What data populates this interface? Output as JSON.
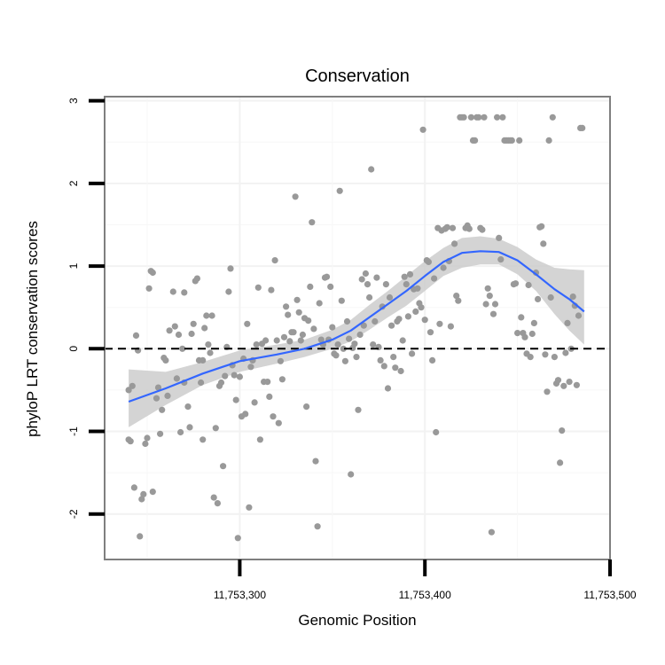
{
  "chart_data": {
    "type": "scatter",
    "title": "Conservation",
    "xlabel": "Genomic Position",
    "ylabel": "phyloP LRT conservation scores",
    "xlim": [
      11753227,
      11753500
    ],
    "ylim": [
      -2.55,
      3.05
    ],
    "x_ticks": [
      11753300,
      11753400,
      11753500
    ],
    "x_tick_labels": [
      "11,753,300",
      "11,753,400",
      "11,753,500"
    ],
    "y_ticks": [
      -2,
      -1,
      0,
      1,
      2,
      3
    ],
    "y_tick_labels": [
      "-2",
      "-1",
      "0",
      "1",
      "2",
      "3"
    ],
    "grid": true,
    "reference_line": {
      "y": 0,
      "style": "dashed"
    },
    "point_color": "#999999",
    "smooth_color": "#3366ff",
    "ribbon_color": "#cccccc",
    "points": [
      [
        11753240,
        -1.1
      ],
      [
        11753241,
        -1.12
      ],
      [
        11753240,
        -0.5
      ],
      [
        11753242,
        -0.45
      ],
      [
        11753243,
        -1.68
      ],
      [
        11753244,
        0.16
      ],
      [
        11753245,
        -0.02
      ],
      [
        11753246,
        -2.27
      ],
      [
        11753247,
        -1.82
      ],
      [
        11753248,
        -1.76
      ],
      [
        11753249,
        -1.15
      ],
      [
        11753250,
        -1.08
      ],
      [
        11753251,
        0.73
      ],
      [
        11753252,
        0.94
      ],
      [
        11753253,
        0.92
      ],
      [
        11753253,
        -1.73
      ],
      [
        11753255,
        -0.6
      ],
      [
        11753256,
        -0.47
      ],
      [
        11753257,
        -1.03
      ],
      [
        11753258,
        -0.74
      ],
      [
        11753259,
        -0.11
      ],
      [
        11753260,
        -0.14
      ],
      [
        11753261,
        -0.57
      ],
      [
        11753262,
        0.22
      ],
      [
        11753264,
        0.69
      ],
      [
        11753265,
        0.27
      ],
      [
        11753266,
        -0.36
      ],
      [
        11753267,
        0.17
      ],
      [
        11753268,
        -1.01
      ],
      [
        11753269,
        0.0
      ],
      [
        11753270,
        0.68
      ],
      [
        11753270,
        -0.41
      ],
      [
        11753272,
        -0.7
      ],
      [
        11753273,
        -0.95
      ],
      [
        11753274,
        0.18
      ],
      [
        11753275,
        0.3
      ],
      [
        11753276,
        0.82
      ],
      [
        11753277,
        0.85
      ],
      [
        11753278,
        -0.14
      ],
      [
        11753279,
        -0.41
      ],
      [
        11753280,
        -0.14
      ],
      [
        11753280,
        -1.1
      ],
      [
        11753281,
        0.25
      ],
      [
        11753282,
        0.4
      ],
      [
        11753283,
        0.05
      ],
      [
        11753284,
        -0.05
      ],
      [
        11753285,
        0.4
      ],
      [
        11753286,
        -1.8
      ],
      [
        11753287,
        -0.96
      ],
      [
        11753288,
        -1.87
      ],
      [
        11753289,
        -0.45
      ],
      [
        11753290,
        -0.41
      ],
      [
        11753291,
        -1.42
      ],
      [
        11753292,
        -0.33
      ],
      [
        11753293,
        0.02
      ],
      [
        11753294,
        0.69
      ],
      [
        11753295,
        0.97
      ],
      [
        11753296,
        -0.2
      ],
      [
        11753297,
        -0.32
      ],
      [
        11753298,
        -0.62
      ],
      [
        11753299,
        -2.29
      ],
      [
        11753300,
        -0.34
      ],
      [
        11753301,
        -0.82
      ],
      [
        11753302,
        -0.12
      ],
      [
        11753303,
        -0.79
      ],
      [
        11753304,
        0.3
      ],
      [
        11753305,
        -1.92
      ],
      [
        11753306,
        -0.22
      ],
      [
        11753307,
        -0.14
      ],
      [
        11753308,
        -0.65
      ],
      [
        11753309,
        0.05
      ],
      [
        11753310,
        0.74
      ],
      [
        11753311,
        -1.1
      ],
      [
        11753312,
        0.06
      ],
      [
        11753313,
        -0.4
      ],
      [
        11753314,
        0.1
      ],
      [
        11753315,
        -0.4
      ],
      [
        11753316,
        -0.58
      ],
      [
        11753317,
        0.71
      ],
      [
        11753318,
        -0.82
      ],
      [
        11753319,
        1.07
      ],
      [
        11753320,
        0.1
      ],
      [
        11753321,
        -0.9
      ],
      [
        11753322,
        -0.15
      ],
      [
        11753323,
        -0.37
      ],
      [
        11753324,
        0.14
      ],
      [
        11753325,
        0.51
      ],
      [
        11753326,
        0.41
      ],
      [
        11753327,
        0.09
      ],
      [
        11753328,
        0.2
      ],
      [
        11753329,
        0.2
      ],
      [
        11753330,
        1.84
      ],
      [
        11753331,
        0.59
      ],
      [
        11753332,
        0.44
      ],
      [
        11753333,
        0.1
      ],
      [
        11753334,
        0.17
      ],
      [
        11753335,
        0.37
      ],
      [
        11753336,
        -0.7
      ],
      [
        11753337,
        0.34
      ],
      [
        11753338,
        0.75
      ],
      [
        11753339,
        1.53
      ],
      [
        11753340,
        0.24
      ],
      [
        11753341,
        -1.36
      ],
      [
        11753342,
        -2.15
      ],
      [
        11753343,
        0.55
      ],
      [
        11753344,
        0.11
      ],
      [
        11753345,
        0.05
      ],
      [
        11753346,
        0.86
      ],
      [
        11753347,
        0.87
      ],
      [
        11753348,
        0.11
      ],
      [
        11753349,
        0.75
      ],
      [
        11753350,
        0.26
      ],
      [
        11753351,
        -0.06
      ],
      [
        11753352,
        -0.08
      ],
      [
        11753353,
        0.05
      ],
      [
        11753354,
        1.91
      ],
      [
        11753355,
        0.58
      ],
      [
        11753356,
        0.0
      ],
      [
        11753357,
        -0.15
      ],
      [
        11753358,
        0.33
      ],
      [
        11753359,
        0.12
      ],
      [
        11753360,
        -1.52
      ],
      [
        11753361,
        0.01
      ],
      [
        11753362,
        0.06
      ],
      [
        11753363,
        -0.1
      ],
      [
        11753364,
        -0.74
      ],
      [
        11753365,
        0.17
      ],
      [
        11753366,
        0.84
      ],
      [
        11753367,
        0.28
      ],
      [
        11753368,
        0.91
      ],
      [
        11753369,
        0.78
      ],
      [
        11753370,
        0.62
      ],
      [
        11753371,
        2.17
      ],
      [
        11753372,
        0.05
      ],
      [
        11753373,
        0.33
      ],
      [
        11753374,
        0.86
      ],
      [
        11753375,
        0.02
      ],
      [
        11753376,
        -0.14
      ],
      [
        11753377,
        0.51
      ],
      [
        11753378,
        -0.21
      ],
      [
        11753379,
        0.78
      ],
      [
        11753380,
        -0.48
      ],
      [
        11753381,
        0.62
      ],
      [
        11753382,
        0.28
      ],
      [
        11753383,
        -0.1
      ],
      [
        11753384,
        -0.23
      ],
      [
        11753385,
        0.33
      ],
      [
        11753386,
        0.36
      ],
      [
        11753387,
        -0.27
      ],
      [
        11753388,
        0.1
      ],
      [
        11753389,
        0.87
      ],
      [
        11753390,
        0.78
      ],
      [
        11753391,
        0.39
      ],
      [
        11753392,
        0.9
      ],
      [
        11753393,
        -0.06
      ],
      [
        11753394,
        0.72
      ],
      [
        11753395,
        0.45
      ],
      [
        11753396,
        0.73
      ],
      [
        11753397,
        0.55
      ],
      [
        11753398,
        0.5
      ],
      [
        11753399,
        2.65
      ],
      [
        11753400,
        0.35
      ],
      [
        11753401,
        1.07
      ],
      [
        11753402,
        1.05
      ],
      [
        11753403,
        0.2
      ],
      [
        11753404,
        -0.14
      ],
      [
        11753405,
        0.85
      ],
      [
        11753406,
        -1.01
      ],
      [
        11753407,
        1.46
      ],
      [
        11753408,
        0.3
      ],
      [
        11753409,
        1.43
      ],
      [
        11753410,
        0.98
      ],
      [
        11753411,
        1.45
      ],
      [
        11753412,
        1.47
      ],
      [
        11753413,
        1.06
      ],
      [
        11753414,
        0.27
      ],
      [
        11753415,
        1.46
      ],
      [
        11753416,
        1.27
      ],
      [
        11753417,
        0.64
      ],
      [
        11753418,
        0.58
      ],
      [
        11753419,
        2.8
      ],
      [
        11753420,
        2.8
      ],
      [
        11753421,
        2.8
      ],
      [
        11753422,
        1.46
      ],
      [
        11753423,
        1.49
      ],
      [
        11753424,
        1.45
      ],
      [
        11753425,
        2.8
      ],
      [
        11753426,
        2.52
      ],
      [
        11753427,
        2.52
      ],
      [
        11753428,
        2.8
      ],
      [
        11753429,
        2.8
      ],
      [
        11753430,
        1.46
      ],
      [
        11753431,
        1.44
      ],
      [
        11753432,
        2.8
      ],
      [
        11753433,
        0.54
      ],
      [
        11753434,
        0.73
      ],
      [
        11753435,
        0.64
      ],
      [
        11753436,
        -2.22
      ],
      [
        11753437,
        0.42
      ],
      [
        11753438,
        0.54
      ],
      [
        11753439,
        2.8
      ],
      [
        11753440,
        1.34
      ],
      [
        11753441,
        1.08
      ],
      [
        11753442,
        2.8
      ],
      [
        11753443,
        2.52
      ],
      [
        11753444,
        2.52
      ],
      [
        11753445,
        2.52
      ],
      [
        11753446,
        2.52
      ],
      [
        11753447,
        2.52
      ],
      [
        11753448,
        0.78
      ],
      [
        11753449,
        0.79
      ],
      [
        11753450,
        0.19
      ],
      [
        11753451,
        2.52
      ],
      [
        11753452,
        0.38
      ],
      [
        11753453,
        0.19
      ],
      [
        11753454,
        0.14
      ],
      [
        11753455,
        -0.06
      ],
      [
        11753456,
        0.77
      ],
      [
        11753457,
        -0.1
      ],
      [
        11753458,
        0.18
      ],
      [
        11753459,
        0.31
      ],
      [
        11753460,
        0.92
      ],
      [
        11753461,
        0.6
      ],
      [
        11753462,
        1.47
      ],
      [
        11753463,
        1.48
      ],
      [
        11753464,
        1.27
      ],
      [
        11753465,
        -0.07
      ],
      [
        11753466,
        -0.52
      ],
      [
        11753467,
        2.52
      ],
      [
        11753468,
        0.62
      ],
      [
        11753469,
        2.8
      ],
      [
        11753470,
        -0.1
      ],
      [
        11753471,
        -0.42
      ],
      [
        11753472,
        -0.38
      ],
      [
        11753473,
        -1.38
      ],
      [
        11753474,
        -0.99
      ],
      [
        11753475,
        -0.45
      ],
      [
        11753476,
        -0.05
      ],
      [
        11753477,
        0.31
      ],
      [
        11753478,
        -0.4
      ],
      [
        11753479,
        0.0
      ],
      [
        11753480,
        0.63
      ],
      [
        11753481,
        0.52
      ],
      [
        11753482,
        -0.44
      ],
      [
        11753483,
        0.4
      ],
      [
        11753484,
        2.67
      ],
      [
        11753485,
        2.67
      ]
    ],
    "smooth": [
      [
        11753240,
        -0.64
      ],
      [
        11753260,
        -0.48
      ],
      [
        11753280,
        -0.3
      ],
      [
        11753300,
        -0.15
      ],
      [
        11753320,
        -0.07
      ],
      [
        11753335,
        0.0
      ],
      [
        11753350,
        0.11
      ],
      [
        11753360,
        0.22
      ],
      [
        11753370,
        0.38
      ],
      [
        11753380,
        0.54
      ],
      [
        11753390,
        0.7
      ],
      [
        11753400,
        0.88
      ],
      [
        11753410,
        1.05
      ],
      [
        11753420,
        1.16
      ],
      [
        11753430,
        1.18
      ],
      [
        11753440,
        1.17
      ],
      [
        11753450,
        1.07
      ],
      [
        11753460,
        0.9
      ],
      [
        11753470,
        0.72
      ],
      [
        11753478,
        0.6
      ],
      [
        11753486,
        0.45
      ]
    ],
    "ribbon": [
      [
        11753240,
        -0.95,
        -0.25
      ],
      [
        11753260,
        -0.68,
        -0.28
      ],
      [
        11753280,
        -0.44,
        -0.16
      ],
      [
        11753300,
        -0.28,
        -0.02
      ],
      [
        11753320,
        -0.18,
        0.05
      ],
      [
        11753335,
        -0.1,
        0.11
      ],
      [
        11753350,
        0.0,
        0.23
      ],
      [
        11753360,
        0.09,
        0.35
      ],
      [
        11753370,
        0.23,
        0.53
      ],
      [
        11753380,
        0.38,
        0.7
      ],
      [
        11753390,
        0.52,
        0.88
      ],
      [
        11753400,
        0.7,
        1.06
      ],
      [
        11753410,
        0.88,
        1.22
      ],
      [
        11753420,
        0.98,
        1.34
      ],
      [
        11753430,
        1.02,
        1.36
      ],
      [
        11753440,
        1.02,
        1.33
      ],
      [
        11753450,
        0.9,
        1.23
      ],
      [
        11753460,
        0.7,
        1.08
      ],
      [
        11753470,
        0.42,
        0.98
      ],
      [
        11753478,
        0.22,
        0.96
      ],
      [
        11753486,
        0.05,
        0.95
      ]
    ]
  }
}
